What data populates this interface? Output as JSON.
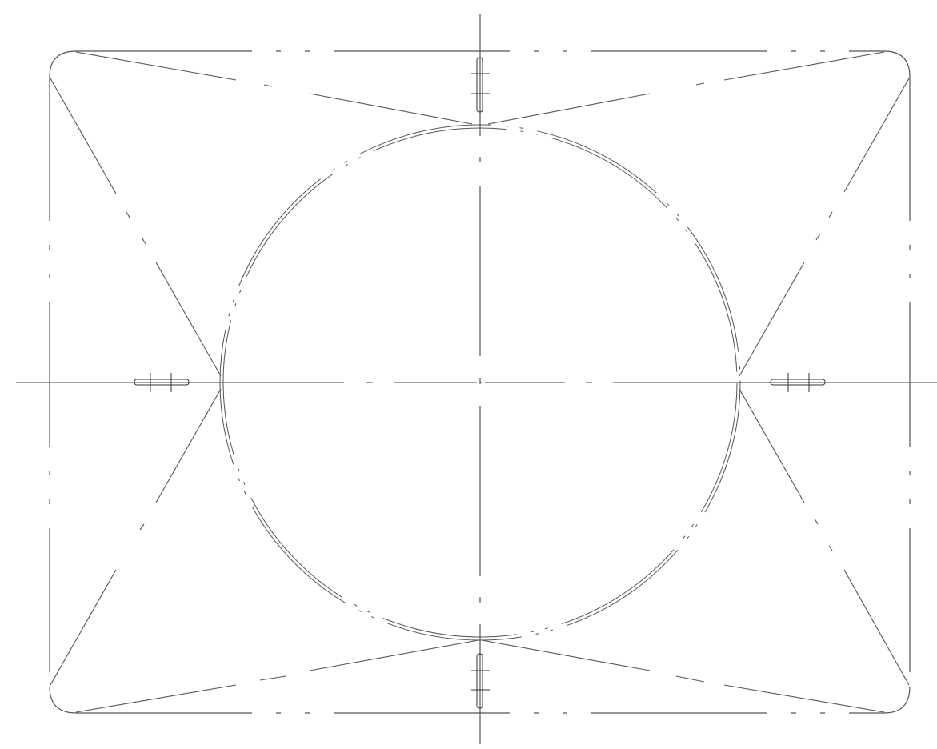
{
  "drawing": {
    "kind": "technical line drawing",
    "line_color": "#555555",
    "background": "#ffffff"
  }
}
